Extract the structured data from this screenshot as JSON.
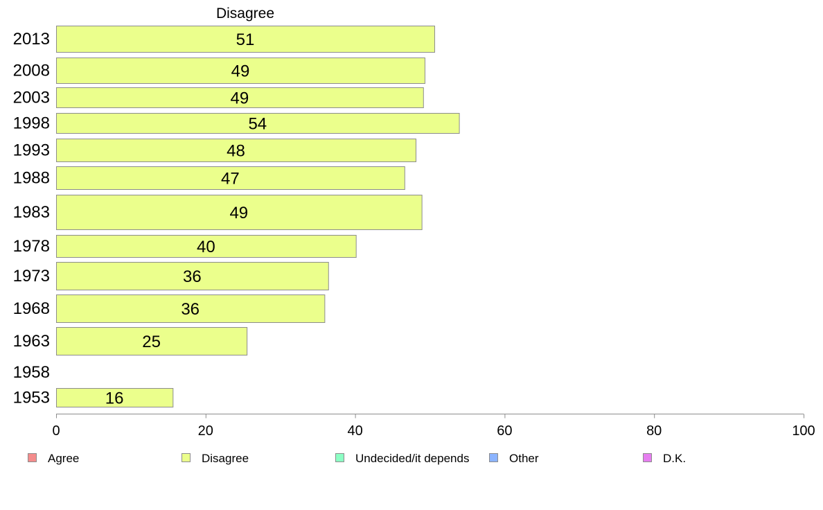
{
  "chart_data": {
    "type": "bar",
    "orientation": "horizontal",
    "title": "Disagree",
    "categories": [
      "2013",
      "2008",
      "2003",
      "1998",
      "1993",
      "1988",
      "1983",
      "1978",
      "1973",
      "1968",
      "1963",
      "1958",
      "1953"
    ],
    "series": [
      {
        "name": "Disagree",
        "color": "#ebff8c",
        "values": [
          50.6,
          49.3,
          49.1,
          53.9,
          48.1,
          46.6,
          48.9,
          40.1,
          36.4,
          35.9,
          25.5,
          null,
          15.6
        ],
        "labels": [
          "51",
          "49",
          "49",
          "54",
          "48",
          "47",
          "49",
          "40",
          "36",
          "36",
          "25",
          "",
          "16"
        ]
      }
    ],
    "xlim": [
      0,
      100
    ],
    "xticks": [
      "0",
      "20",
      "40",
      "60",
      "80",
      "100"
    ],
    "grid": false,
    "legend_position": "bottom",
    "legend": [
      {
        "label": "Agree",
        "color": "#f48c8c"
      },
      {
        "label": "Disagree",
        "color": "#ebff8c"
      },
      {
        "label": "Undecided/it depends",
        "color": "#8cffc4"
      },
      {
        "label": "Other",
        "color": "#8cb4ff"
      },
      {
        "label": "D.K.",
        "color": "#e67ef0"
      }
    ]
  }
}
